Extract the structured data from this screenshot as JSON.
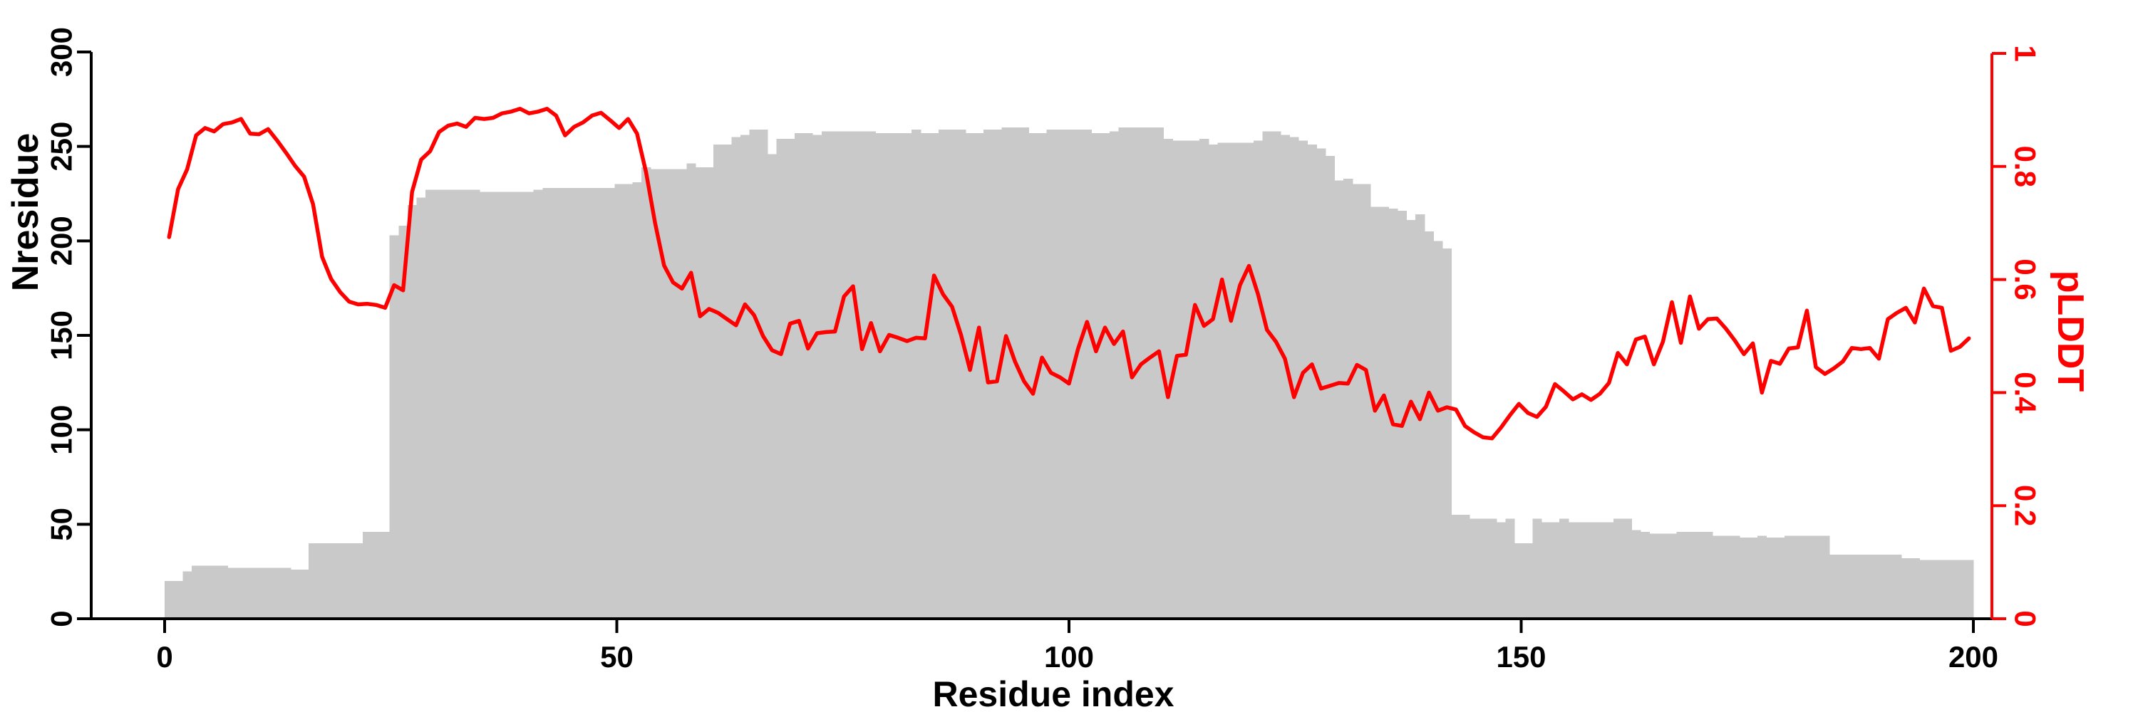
{
  "figure": {
    "background": "#ffffff"
  },
  "chart_data": {
    "type": "bar+line",
    "title": "",
    "xlabel": "Residue index",
    "ylabel_left": "Nresidue",
    "ylabel_right": "pLDDT",
    "grid": false,
    "legend": "none",
    "x_start": 0,
    "x_step": 1,
    "xlim": [
      0,
      200
    ],
    "ylim_left": [
      0,
      300
    ],
    "ylim_right": [
      0,
      1
    ],
    "x_tick_labels": [
      "0",
      "50",
      "100",
      "150",
      "200"
    ],
    "x_ticks": [
      0,
      50,
      100,
      150,
      200
    ],
    "y_ticks_left": [
      0,
      50,
      100,
      150,
      200,
      250,
      300
    ],
    "y_tick_labels_left": [
      "0",
      "50",
      "100",
      "150",
      "200",
      "250",
      "300"
    ],
    "y_ticks_right": [
      0,
      0.2,
      0.4,
      0.6,
      0.8,
      1
    ],
    "y_tick_labels_right": [
      "0",
      "0.2",
      "0.4",
      "0.6",
      "0.8",
      "1"
    ],
    "colors": {
      "bars": "#c9c9c9",
      "line": "#ff0000",
      "axis_left": "#000000",
      "axis_right": "#ff0000"
    },
    "series": [
      {
        "name": "Nresidue",
        "type": "bar",
        "axis": "left",
        "values": [
          20,
          20,
          25,
          28,
          28,
          28,
          28,
          27,
          27,
          27,
          27,
          27,
          27,
          27,
          26,
          26,
          40,
          40,
          40,
          40,
          40,
          40,
          46,
          46,
          46,
          203,
          208,
          219,
          223,
          227,
          227,
          227,
          227,
          227,
          227,
          226,
          226,
          226,
          226,
          226,
          226,
          227,
          228,
          228,
          228,
          228,
          228,
          228,
          228,
          228,
          230,
          230,
          231,
          239,
          238,
          238,
          238,
          238,
          241,
          239,
          239,
          251,
          251,
          255,
          256,
          259,
          259,
          246,
          254,
          254,
          257,
          257,
          256,
          258,
          258,
          258,
          258,
          258,
          258,
          257,
          257,
          257,
          257,
          259,
          257,
          257,
          259,
          259,
          259,
          257,
          257,
          259,
          259,
          260,
          260,
          260,
          257,
          257,
          259,
          259,
          259,
          259,
          259,
          257,
          257,
          258,
          260,
          260,
          260,
          260,
          260,
          254,
          253,
          253,
          253,
          254,
          251,
          252,
          252,
          252,
          252,
          253,
          258,
          258,
          256,
          255,
          253,
          251,
          249,
          245,
          232,
          233,
          230,
          230,
          218,
          218,
          217,
          216,
          211,
          214,
          205,
          200,
          196,
          55,
          55,
          53,
          53,
          53,
          51,
          53,
          40,
          40,
          53,
          51,
          51,
          53,
          51,
          51,
          51,
          51,
          51,
          53,
          53,
          47,
          46,
          45,
          45,
          45,
          46,
          46,
          46,
          46,
          44,
          44,
          44,
          43,
          43,
          44,
          43,
          43,
          44,
          44,
          44,
          44,
          44,
          34,
          34,
          34,
          34,
          34,
          34,
          34,
          34,
          32,
          32,
          31,
          31,
          31,
          31,
          31,
          31
        ]
      },
      {
        "name": "pLDDT",
        "type": "line",
        "axis": "right",
        "values": [
          0.675,
          0.76,
          0.795,
          0.855,
          0.868,
          0.862,
          0.875,
          0.878,
          0.884,
          0.858,
          0.857,
          0.866,
          0.846,
          0.824,
          0.801,
          0.782,
          0.733,
          0.64,
          0.601,
          0.578,
          0.561,
          0.556,
          0.557,
          0.555,
          0.55,
          0.59,
          0.581,
          0.755,
          0.812,
          0.827,
          0.861,
          0.872,
          0.876,
          0.87,
          0.886,
          0.884,
          0.886,
          0.894,
          0.897,
          0.902,
          0.894,
          0.897,
          0.902,
          0.89,
          0.855,
          0.87,
          0.878,
          0.89,
          0.895,
          0.882,
          0.868,
          0.884,
          0.858,
          0.79,
          0.7,
          0.625,
          0.595,
          0.584,
          0.612,
          0.535,
          0.548,
          0.541,
          0.53,
          0.519,
          0.556,
          0.537,
          0.5,
          0.475,
          0.468,
          0.522,
          0.527,
          0.478,
          0.505,
          0.507,
          0.508,
          0.57,
          0.588,
          0.477,
          0.523,
          0.473,
          0.502,
          0.497,
          0.491,
          0.497,
          0.496,
          0.607,
          0.574,
          0.552,
          0.502,
          0.44,
          0.515,
          0.418,
          0.42,
          0.5,
          0.455,
          0.42,
          0.398,
          0.462,
          0.435,
          0.427,
          0.416,
          0.477,
          0.525,
          0.473,
          0.515,
          0.486,
          0.508,
          0.427,
          0.45,
          0.462,
          0.473,
          0.392,
          0.465,
          0.467,
          0.555,
          0.518,
          0.53,
          0.6,
          0.527,
          0.59,
          0.624,
          0.574,
          0.511,
          0.49,
          0.46,
          0.392,
          0.435,
          0.45,
          0.407,
          0.412,
          0.417,
          0.416,
          0.449,
          0.44,
          0.368,
          0.395,
          0.344,
          0.341,
          0.384,
          0.353,
          0.4,
          0.368,
          0.374,
          0.37,
          0.341,
          0.33,
          0.321,
          0.319,
          0.338,
          0.36,
          0.38,
          0.364,
          0.357,
          0.375,
          0.415,
          0.402,
          0.388,
          0.397,
          0.387,
          0.398,
          0.417,
          0.47,
          0.45,
          0.494,
          0.499,
          0.45,
          0.49,
          0.56,
          0.488,
          0.57,
          0.513,
          0.53,
          0.531,
          0.513,
          0.492,
          0.468,
          0.487,
          0.4,
          0.456,
          0.451,
          0.478,
          0.48,
          0.545,
          0.445,
          0.433,
          0.443,
          0.455,
          0.479,
          0.477,
          0.479,
          0.46,
          0.53,
          0.541,
          0.55,
          0.524,
          0.584,
          0.553,
          0.55,
          0.474,
          0.481,
          0.496
        ]
      }
    ]
  }
}
